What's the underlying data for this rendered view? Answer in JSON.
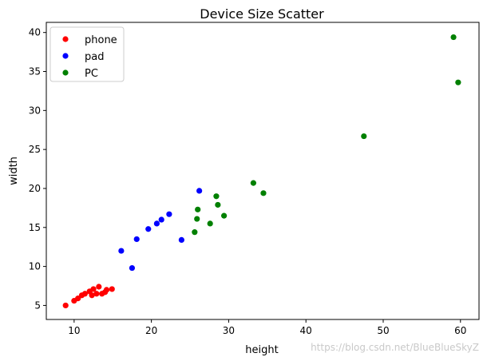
{
  "chart_data": {
    "type": "scatter",
    "title": "Device Size Scatter",
    "xlabel": "height",
    "ylabel": "width",
    "xlim": [
      6.4,
      62.4
    ],
    "ylim": [
      3.2,
      41.3
    ],
    "xticks": [
      10,
      20,
      30,
      40,
      50,
      60
    ],
    "yticks": [
      5,
      10,
      15,
      20,
      25,
      30,
      35,
      40
    ],
    "legend_position": "top-left",
    "grid": false,
    "series": [
      {
        "name": "phone",
        "color": "#ff0000",
        "points": [
          [
            8.9,
            5.0
          ],
          [
            10.0,
            5.6
          ],
          [
            10.5,
            5.9
          ],
          [
            11.0,
            6.3
          ],
          [
            11.4,
            6.5
          ],
          [
            12.0,
            6.8
          ],
          [
            12.3,
            6.3
          ],
          [
            12.5,
            7.1
          ],
          [
            12.9,
            6.5
          ],
          [
            13.2,
            7.4
          ],
          [
            13.6,
            6.5
          ],
          [
            14.0,
            6.7
          ],
          [
            14.2,
            7.0
          ],
          [
            14.9,
            7.1
          ]
        ]
      },
      {
        "name": "pad",
        "color": "#0000ff",
        "points": [
          [
            16.1,
            12.0
          ],
          [
            17.5,
            9.8
          ],
          [
            18.1,
            13.5
          ],
          [
            19.6,
            14.8
          ],
          [
            20.7,
            15.5
          ],
          [
            21.3,
            16.0
          ],
          [
            22.3,
            16.7
          ],
          [
            23.9,
            13.4
          ],
          [
            26.2,
            19.7
          ]
        ]
      },
      {
        "name": "PC",
        "color": "#008000",
        "points": [
          [
            25.6,
            14.4
          ],
          [
            25.9,
            16.1
          ],
          [
            26.0,
            17.3
          ],
          [
            27.6,
            15.5
          ],
          [
            28.4,
            19.0
          ],
          [
            28.6,
            17.9
          ],
          [
            29.4,
            16.5
          ],
          [
            33.2,
            20.7
          ],
          [
            34.5,
            19.4
          ],
          [
            47.5,
            26.7
          ],
          [
            59.1,
            39.4
          ],
          [
            59.7,
            33.6
          ]
        ]
      }
    ]
  },
  "watermark": "https://blog.csdn.net/BlueBlueSkyZ"
}
